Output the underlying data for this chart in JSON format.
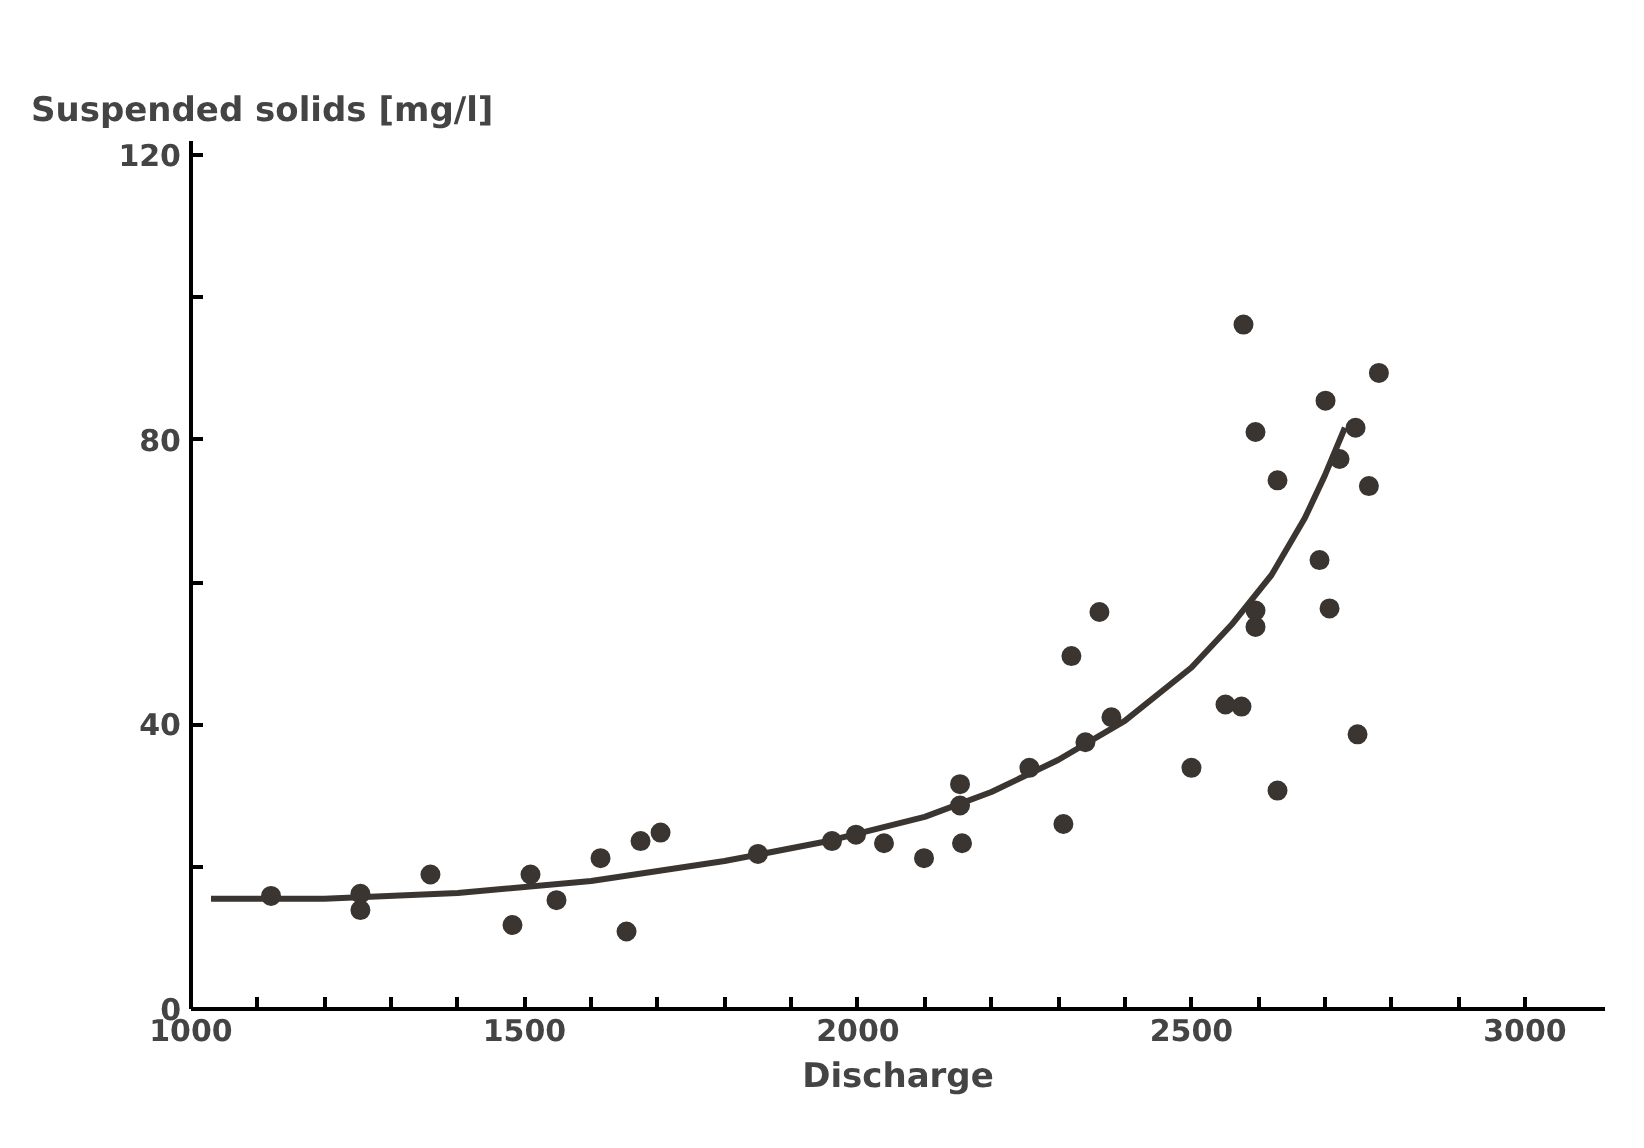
{
  "chart_data": {
    "type": "scatter",
    "ylabel": "Suspended solids [mg/l]",
    "xlabel": "Discharge",
    "xlim": [
      1000,
      3120
    ],
    "ylim": [
      0,
      122
    ],
    "xticks": [
      1000,
      {
        "value": 1100,
        "label": null
      },
      {
        "value": 1200,
        "label": null
      },
      {
        "value": 1300,
        "label": null
      },
      {
        "value": 1400,
        "label": null
      },
      1500,
      {
        "value": 1600,
        "label": null
      },
      {
        "value": 1700,
        "label": null
      },
      {
        "value": 1800,
        "label": null
      },
      {
        "value": 1900,
        "label": null
      },
      2000,
      {
        "value": 2100,
        "label": null
      },
      {
        "value": 2200,
        "label": null
      },
      {
        "value": 2300,
        "label": null
      },
      {
        "value": 2400,
        "label": null
      },
      2500,
      {
        "value": 2600,
        "label": null
      },
      {
        "value": 2700,
        "label": null
      },
      {
        "value": 2800,
        "label": null
      },
      {
        "value": 2900,
        "label": null
      },
      3000
    ],
    "yticks": [
      0,
      {
        "value": 20,
        "label": null
      },
      40,
      {
        "value": 60,
        "label": null
      },
      80,
      {
        "value": 100,
        "label": null
      },
      120
    ],
    "grid": false,
    "marker": "circle",
    "series": [
      {
        "color": "#3a3530",
        "x": [
          1120,
          1254,
          1254,
          1359,
          1482,
          1509,
          1548,
          1614,
          1653,
          1674,
          1704,
          1850,
          1961,
          1997,
          2039,
          2099,
          2153,
          2153,
          2156,
          2257,
          2308,
          2320,
          2341,
          2362,
          2380,
          2500,
          2551,
          2575,
          2578,
          2596,
          2596,
          2596,
          2629,
          2629,
          2692,
          2701,
          2707,
          2722,
          2746,
          2749,
          2766,
          2781
        ],
        "values": [
          15.9,
          16.2,
          13.9,
          18.9,
          11.8,
          18.9,
          15.3,
          21.2,
          10.9,
          23.6,
          24.8,
          21.8,
          23.6,
          24.5,
          23.3,
          21.2,
          31.6,
          28.6,
          23.3,
          33.9,
          26,
          49.6,
          37.5,
          55.8,
          41,
          33.9,
          42.8,
          42.5,
          96.2,
          81.1,
          56,
          53.7,
          74.3,
          30.7,
          63.1,
          85.5,
          56.3,
          77.3,
          81.7,
          38.6,
          73.5,
          89.4
        ]
      },
      {
        "type": "line",
        "color": "#3a3530",
        "line_style": "solid",
        "marker": "none",
        "x": [
          1030,
          1200,
          1400,
          1600,
          1800,
          1950,
          2100,
          2200,
          2300,
          2400,
          2500,
          2560,
          2620,
          2670,
          2700,
          2730
        ],
        "values": [
          15.5,
          15.5,
          16.3,
          18,
          20.8,
          23.5,
          27,
          30.5,
          35,
          40.5,
          48,
          54,
          61,
          69,
          75,
          81.7
        ]
      }
    ]
  }
}
